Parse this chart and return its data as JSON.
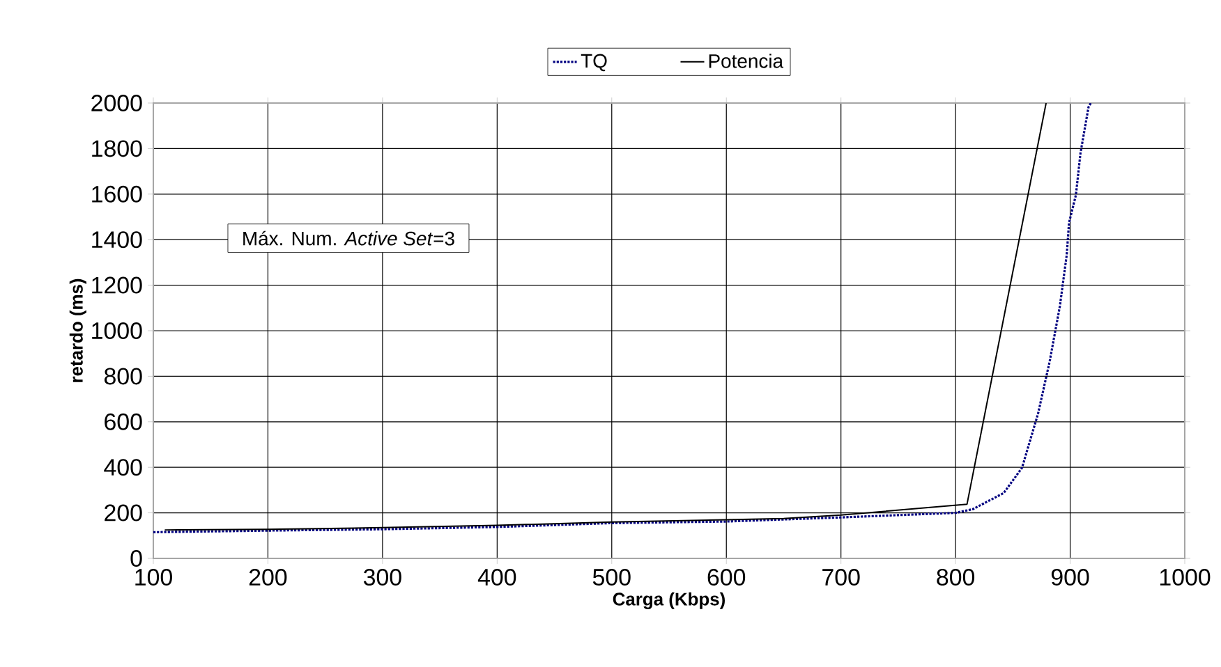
{
  "chart_data": {
    "type": "line",
    "xlabel": "Carga (Kbps)",
    "ylabel": "retardo (ms)",
    "annotations": [
      "Máx. Num. *Active Set*=3"
    ],
    "xlim": [
      100,
      1000
    ],
    "xticks": [
      100,
      200,
      300,
      400,
      500,
      600,
      700,
      800,
      900,
      1000
    ],
    "ylim": [
      0,
      2000
    ],
    "yticks": [
      0,
      200,
      400,
      600,
      800,
      1000,
      1200,
      1400,
      1600,
      1800,
      2000
    ],
    "grid": true,
    "legend": "top",
    "marker": "none",
    "series": [
      {
        "name": "TQ",
        "color": "#000080",
        "line_style": "dotted",
        "x": [
          100,
          200,
          300,
          400,
          500,
          600,
          700,
          800,
          815,
          842,
          858,
          872,
          882,
          891,
          897,
          899,
          905,
          909,
          916,
          918
        ],
        "values": [
          115,
          122,
          128,
          138,
          155,
          162,
          180,
          200,
          216,
          287,
          398,
          636,
          862,
          1107,
          1333,
          1474,
          1596,
          1780,
          1982,
          2000
        ]
      },
      {
        "name": "Potencia",
        "color": "#000000",
        "line_style": "solid",
        "x": [
          110,
          200,
          300,
          400,
          500,
          600,
          650,
          700,
          810,
          879
        ],
        "values": [
          125,
          128,
          135,
          145,
          160,
          170,
          175,
          190,
          238,
          2000
        ]
      }
    ]
  }
}
